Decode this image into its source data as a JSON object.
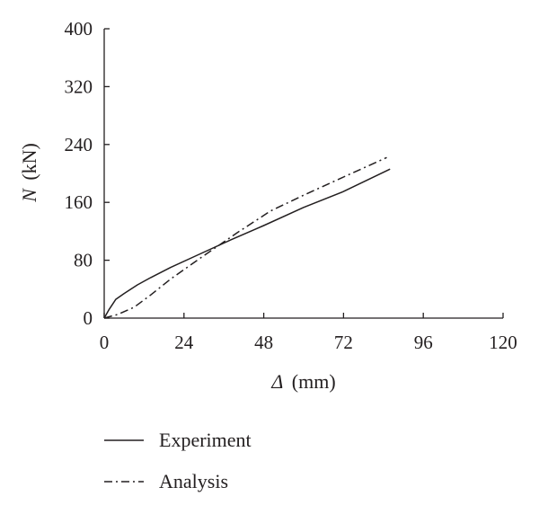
{
  "chart_data": {
    "type": "line",
    "xlabel_symbol": "Δ",
    "xlabel_unit": "(mm)",
    "ylabel_symbol": "N",
    "ylabel_unit": "(kN)",
    "xlim": [
      0,
      120
    ],
    "ylim": [
      0,
      400
    ],
    "xticks": [
      0,
      24,
      48,
      72,
      96,
      120
    ],
    "yticks": [
      0,
      80,
      160,
      240,
      320,
      400
    ],
    "grid": false,
    "legend_position": "bottom-left, below plot",
    "series": [
      {
        "name": "Experiment",
        "line_style": "solid",
        "color": "#231f20",
        "x": [
          0,
          1.5,
          3.5,
          6,
          10,
          14,
          20,
          28,
          38,
          48,
          60,
          72,
          86
        ],
        "y": [
          0,
          12,
          26,
          34,
          46,
          56,
          70,
          87,
          108,
          128,
          153,
          175,
          206
        ]
      },
      {
        "name": "Analysis",
        "line_style": "dash-dot",
        "color": "#231f20",
        "x": [
          0,
          4,
          9,
          14,
          20,
          28,
          40,
          50,
          60,
          72,
          85
        ],
        "y": [
          0,
          5,
          15,
          32,
          54,
          80,
          118,
          148,
          170,
          195,
          222
        ]
      }
    ]
  }
}
